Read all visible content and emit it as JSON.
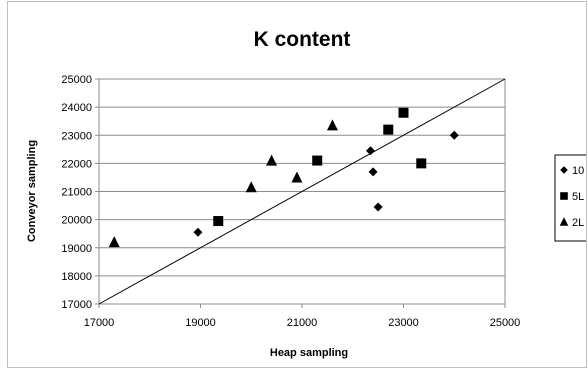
{
  "chart_data": {
    "type": "scatter",
    "title": "K content",
    "xlabel": "Heap sampling",
    "ylabel": "Conveyor sampling",
    "xlim": [
      17000,
      25000
    ],
    "ylim": [
      17000,
      25000
    ],
    "x_ticks": [
      17000,
      19000,
      21000,
      23000,
      25000
    ],
    "y_ticks": [
      17000,
      18000,
      19000,
      20000,
      21000,
      22000,
      23000,
      24000,
      25000
    ],
    "grid": "horizontal",
    "legend_position": "right",
    "reference_line": {
      "from": [
        17000,
        17000
      ],
      "to": [
        25000,
        25000
      ]
    },
    "series": [
      {
        "name": "10",
        "marker": "diamond",
        "points": [
          [
            18950,
            19550
          ],
          [
            22350,
            22450
          ],
          [
            22400,
            21700
          ],
          [
            22500,
            20450
          ],
          [
            24000,
            23000
          ]
        ]
      },
      {
        "name": "5L",
        "marker": "square",
        "points": [
          [
            19350,
            19950
          ],
          [
            21300,
            22100
          ],
          [
            22700,
            23200
          ],
          [
            23000,
            23800
          ],
          [
            23350,
            22000
          ]
        ]
      },
      {
        "name": "2L",
        "marker": "triangle",
        "points": [
          [
            17300,
            19200
          ],
          [
            20000,
            21150
          ],
          [
            20400,
            22100
          ],
          [
            20900,
            21500
          ],
          [
            21600,
            23350
          ]
        ]
      }
    ]
  },
  "colors": {
    "marker": "#000000",
    "grid": "#8c8c8c",
    "axis": "#8c8c8c",
    "frame": "#bfbfbf"
  }
}
